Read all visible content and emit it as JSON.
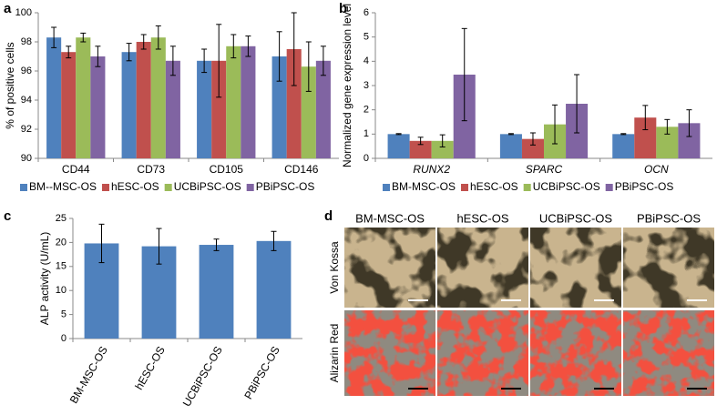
{
  "chart_data": [
    {
      "type": "bar",
      "label": "a",
      "ylabel": "% of positive cells",
      "categories": [
        "CD44",
        "CD73",
        "CD105",
        "CD146"
      ],
      "series": [
        {
          "name": "BM--MSC-OS",
          "color": "#4f81bd",
          "values": [
            98.3,
            97.3,
            96.7,
            97.0
          ],
          "errors": [
            0.7,
            0.6,
            0.8,
            1.7
          ]
        },
        {
          "name": "hESC-OS",
          "color": "#c0504d",
          "values": [
            97.3,
            98.0,
            96.7,
            97.5
          ],
          "errors": [
            0.4,
            0.5,
            2.5,
            2.5
          ]
        },
        {
          "name": "UCBiPSC-OS",
          "color": "#9bbb59",
          "values": [
            98.3,
            98.3,
            97.7,
            96.3
          ],
          "errors": [
            0.3,
            0.8,
            0.8,
            1.7
          ]
        },
        {
          "name": "PBiPSC-OS",
          "color": "#8064a2",
          "values": [
            97.0,
            96.7,
            97.7,
            96.7
          ],
          "errors": [
            0.7,
            1.0,
            0.7,
            1.0
          ]
        }
      ],
      "ylim": [
        90,
        100
      ],
      "yticks": [
        90,
        92,
        94,
        96,
        98,
        100
      ],
      "legend": "bottom"
    },
    {
      "type": "bar",
      "label": "b",
      "ylabel": "Normalized gene expression level",
      "categories": [
        "RUNX2",
        "SPARC",
        "OCN"
      ],
      "series": [
        {
          "name": "BM-MSC-OS",
          "color": "#4f81bd",
          "values": [
            1.0,
            1.0,
            1.0
          ],
          "errors": [
            0.02,
            0.02,
            0.02
          ]
        },
        {
          "name": "hESC-OS",
          "color": "#c0504d",
          "values": [
            0.72,
            0.8,
            1.68
          ],
          "errors": [
            0.15,
            0.25,
            0.5
          ]
        },
        {
          "name": "UCBiPSC-OS",
          "color": "#9bbb59",
          "values": [
            0.72,
            1.4,
            1.3
          ],
          "errors": [
            0.25,
            0.8,
            0.3
          ]
        },
        {
          "name": "PBiPSC-OS",
          "color": "#8064a2",
          "values": [
            3.45,
            2.25,
            1.45
          ],
          "errors": [
            1.9,
            1.2,
            0.55
          ]
        }
      ],
      "ylim": [
        0,
        6
      ],
      "yticks": [
        0,
        1,
        2,
        3,
        4,
        5,
        6
      ],
      "legend": "bottom"
    },
    {
      "type": "bar",
      "label": "c",
      "ylabel": "ALP activity (U/mL)",
      "categories": [
        "BM-MSC-OS",
        "hESC-OS",
        "UCBiPSC-OS",
        "PBiPSC-OS"
      ],
      "values": [
        19.8,
        19.2,
        19.5,
        20.3
      ],
      "errors": [
        4.0,
        3.7,
        1.2,
        2.0
      ],
      "color": "#4f81bd",
      "ylim": [
        0,
        25
      ],
      "yticks": [
        0,
        5,
        10,
        15,
        20,
        25
      ]
    }
  ],
  "panel_d": {
    "label": "d",
    "columns": [
      "BM-MSC-OS",
      "hESC-OS",
      "UCBiPSC-OS",
      "PBiPSC-OS"
    ],
    "rows": [
      "Von Kossa",
      "Alizarin Red"
    ]
  }
}
